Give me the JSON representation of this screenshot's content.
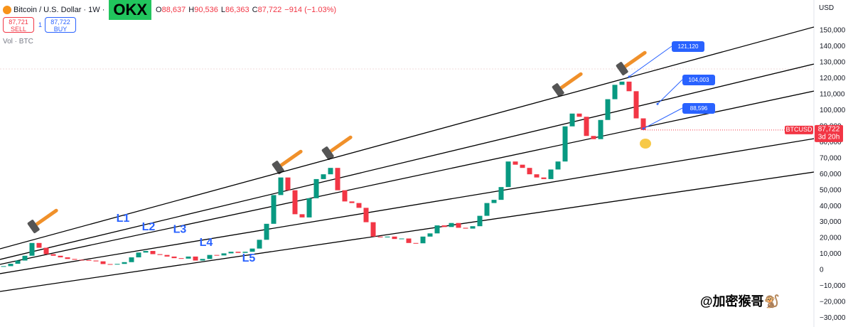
{
  "chart_data": {
    "type": "candlestick",
    "header": {
      "symbol": "Bitcoin / U.S. Dollar · 1W ·",
      "exchange": "OKX",
      "ohlc": [
        {
          "label": "O",
          "value": "88,637"
        },
        {
          "label": "H",
          "value": "90,536"
        },
        {
          "label": "L",
          "value": "86,363"
        },
        {
          "label": "C",
          "value": "87,722"
        }
      ],
      "change": "−914 (−1.03%)",
      "sell": {
        "price": "87,721",
        "label": "SELL"
      },
      "spread": "1",
      "buy": {
        "price": "87,722",
        "label": "BUY"
      },
      "volume": "Vol · BTC"
    },
    "currency": "USD",
    "values": [
      2500,
      4000,
      6000,
      9000,
      17000,
      14000,
      10000,
      9000,
      8000,
      7000,
      6500,
      6300,
      6000,
      5500,
      3800,
      3600,
      3900,
      5000,
      8000,
      11000,
      12000,
      10000,
      9500,
      8500,
      7500,
      7200,
      8500,
      6000,
      7000,
      9500,
      9200,
      10500,
      11500,
      10800,
      11500,
      13500,
      19000,
      29000,
      47000,
      58000,
      50000,
      35000,
      33000,
      45000,
      57000,
      60000,
      64000,
      50000,
      43000,
      42000,
      39000,
      30000,
      21000,
      20500,
      21000,
      19500,
      19800,
      17000,
      16800,
      21000,
      23000,
      28000,
      27000,
      29500,
      26500,
      26000,
      27500,
      34000,
      42000,
      44000,
      52000,
      68000,
      66000,
      64000,
      60000,
      58000,
      57000,
      63000,
      68000,
      90000,
      98000,
      96000,
      84000,
      82000,
      94000,
      107000,
      116000,
      118000,
      112000,
      95000,
      87722
    ],
    "up_color": "#089981",
    "down_color": "#f23645",
    "ylim": [
      -35600,
      169100
    ],
    "yticks": [
      {
        "value": 150000,
        "label": "150,000"
      },
      {
        "value": 140000,
        "label": "140,000"
      },
      {
        "value": 130000,
        "label": "130,000"
      },
      {
        "value": 120000,
        "label": "120,000"
      },
      {
        "value": 110000,
        "label": "110,000"
      },
      {
        "value": 100000,
        "label": "100,000"
      },
      {
        "value": 90000,
        "label": "90,000"
      },
      {
        "value": 80000,
        "label": "80,000"
      },
      {
        "value": 70000,
        "label": "70,000"
      },
      {
        "value": 60000,
        "label": "60,000"
      },
      {
        "value": 50000,
        "label": "50,000"
      },
      {
        "value": 40000,
        "label": "40,000"
      },
      {
        "value": 30000,
        "label": "30,000"
      },
      {
        "value": 20000,
        "label": "20,000"
      },
      {
        "value": 10000,
        "label": "10,000"
      },
      0,
      {
        "value": -10000,
        "label": "−10,000"
      },
      {
        "value": -20000,
        "label": "−20,000"
      },
      {
        "value": -30000,
        "label": "−30,000"
      }
    ],
    "grid": false,
    "trend_lines": [
      {
        "name": "L1",
        "values": [
          13350,
          152200
        ],
        "color": "#000000"
      },
      {
        "name": "L2",
        "values": [
          6700,
          129000
        ],
        "color": "#000000"
      },
      {
        "name": "L3",
        "values": [
          3600,
          112100
        ],
        "color": "#000000"
      },
      {
        "name": "L4",
        "values": [
          -2200,
          82300
        ],
        "color": "#000000"
      },
      {
        "name": "L5",
        "values": [
          -13350,
          61400
        ],
        "color": "#000000"
      }
    ],
    "label_color": "#2962ff",
    "annotations": [
      {
        "label": "121,120",
        "value": 121120
      },
      {
        "label": "104,003",
        "value": 104003
      },
      {
        "label": "88,596",
        "value": 88596
      }
    ],
    "price_tag": {
      "symbol": "BTCUSD",
      "price": "87,722",
      "countdown": "3d 20h"
    },
    "watermark": "@加密猴哥🐒"
  }
}
